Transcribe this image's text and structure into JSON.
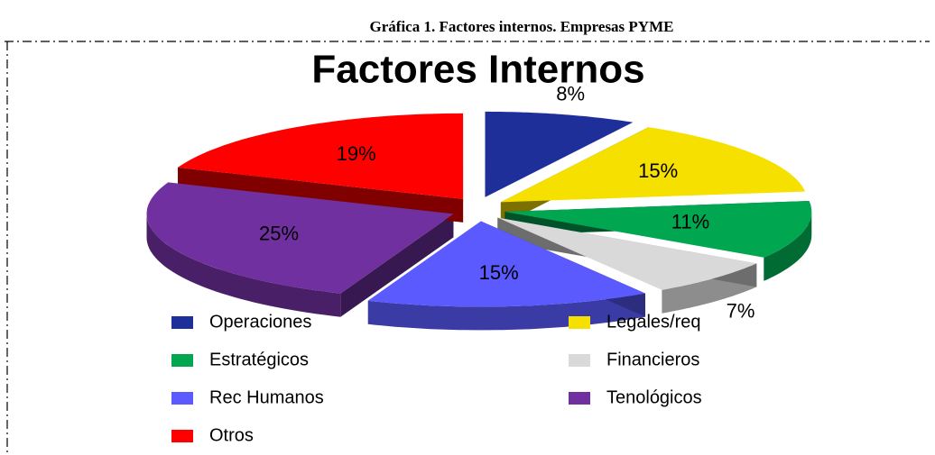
{
  "figure_caption": "Gráfica 1. Factores internos. Empresas PYME",
  "chart_data": {
    "type": "pie",
    "title": "Factores Internos",
    "categories": [
      "Operaciones",
      "Legales/req",
      "Estratégicos",
      "Financieros",
      "Rec Humanos",
      "Tenológicos",
      "Otros"
    ],
    "values": [
      8,
      15,
      11,
      7,
      15,
      25,
      19
    ],
    "value_labels": [
      "8%",
      "15%",
      "11%",
      "7%",
      "15%",
      "25%",
      "19%"
    ],
    "colors": [
      "#1f2f9a",
      "#f5e000",
      "#00a650",
      "#d9d9d9",
      "#5a5aff",
      "#7030a0",
      "#ff0000"
    ],
    "legend": "bottom"
  }
}
